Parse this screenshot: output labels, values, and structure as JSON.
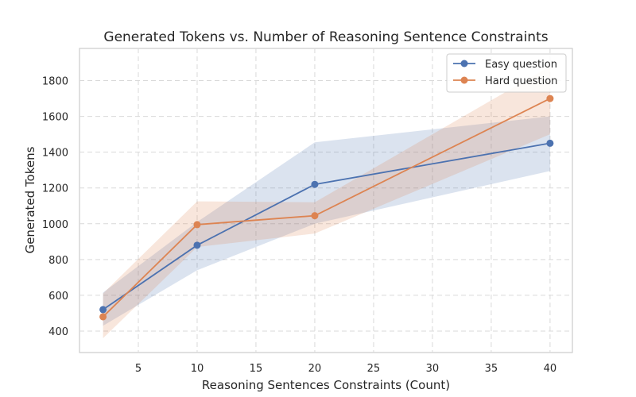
{
  "chart_data": {
    "type": "line",
    "title": "Generated Tokens vs. Number of Reasoning Sentence Constraints",
    "xlabel": "Reasoning Sentences Constraints (Count)",
    "ylabel": "Generated Tokens",
    "x": [
      2,
      10,
      20,
      40
    ],
    "xlim": [
      -0.0,
      41.9
    ],
    "ylim": [
      280,
      1980
    ],
    "xticks": [
      5,
      10,
      15,
      20,
      25,
      30,
      35,
      40
    ],
    "yticks": [
      400,
      600,
      800,
      1000,
      1200,
      1400,
      1600,
      1800
    ],
    "grid": true,
    "legend_position": "top-right",
    "series": [
      {
        "name": "Easy question",
        "color": "#4c72b0",
        "values": [
          520,
          880,
          1220,
          1450
        ],
        "band_lower": [
          430,
          740,
          1000,
          1295
        ],
        "band_upper": [
          615,
          1010,
          1455,
          1600
        ]
      },
      {
        "name": "Hard question",
        "color": "#dd8452",
        "values": [
          480,
          995,
          1045,
          1700
        ],
        "band_lower": [
          360,
          870,
          945,
          1500
        ],
        "band_upper": [
          610,
          1125,
          1120,
          1880
        ]
      }
    ]
  }
}
